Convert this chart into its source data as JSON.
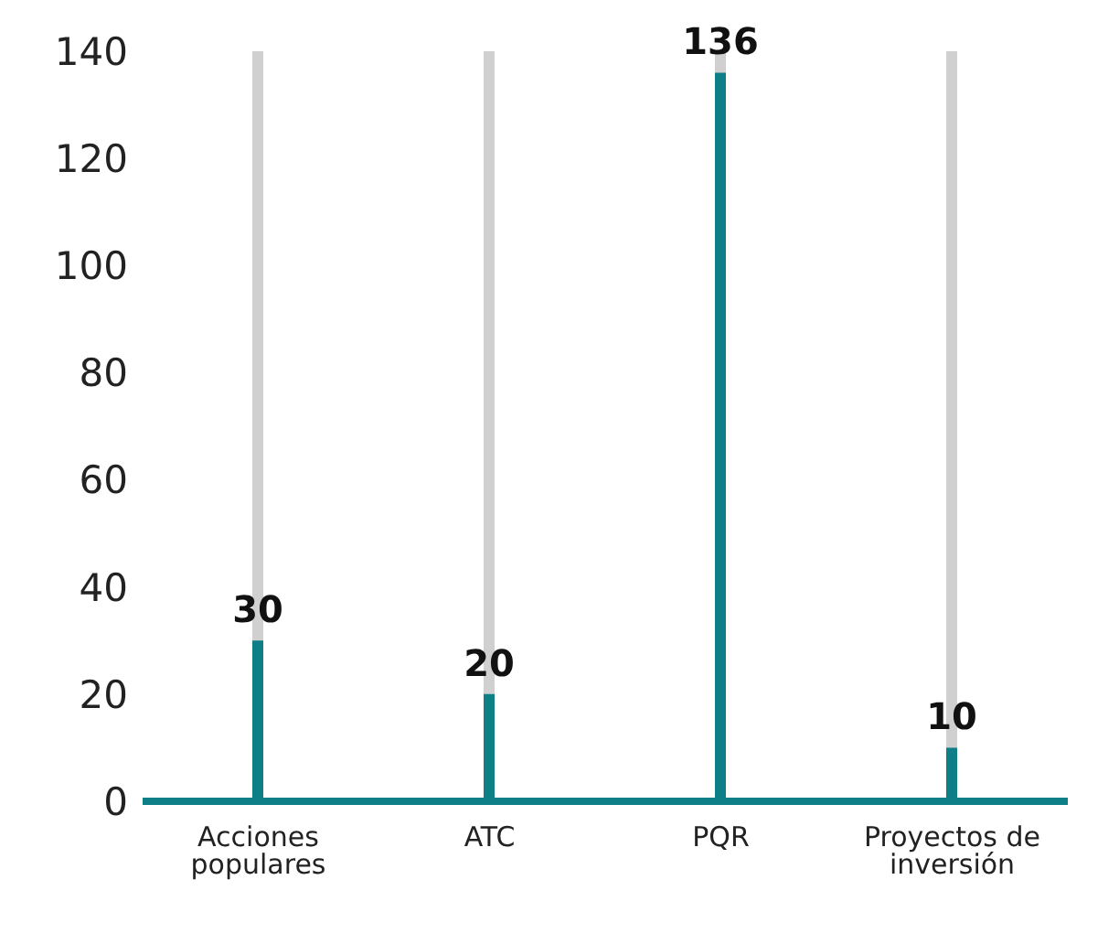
{
  "chart_data": {
    "type": "bar",
    "categories": [
      "Acciones populares",
      "ATC",
      "PQR",
      "Proyectos de inversión"
    ],
    "series": [
      {
        "color": "#0e7f86",
        "values": [
          30,
          20,
          136,
          10
        ]
      }
    ],
    "ylim": [
      0,
      140
    ],
    "yticks": [
      0,
      20,
      40,
      60,
      80,
      100,
      120,
      140
    ],
    "data_labels": true
  }
}
